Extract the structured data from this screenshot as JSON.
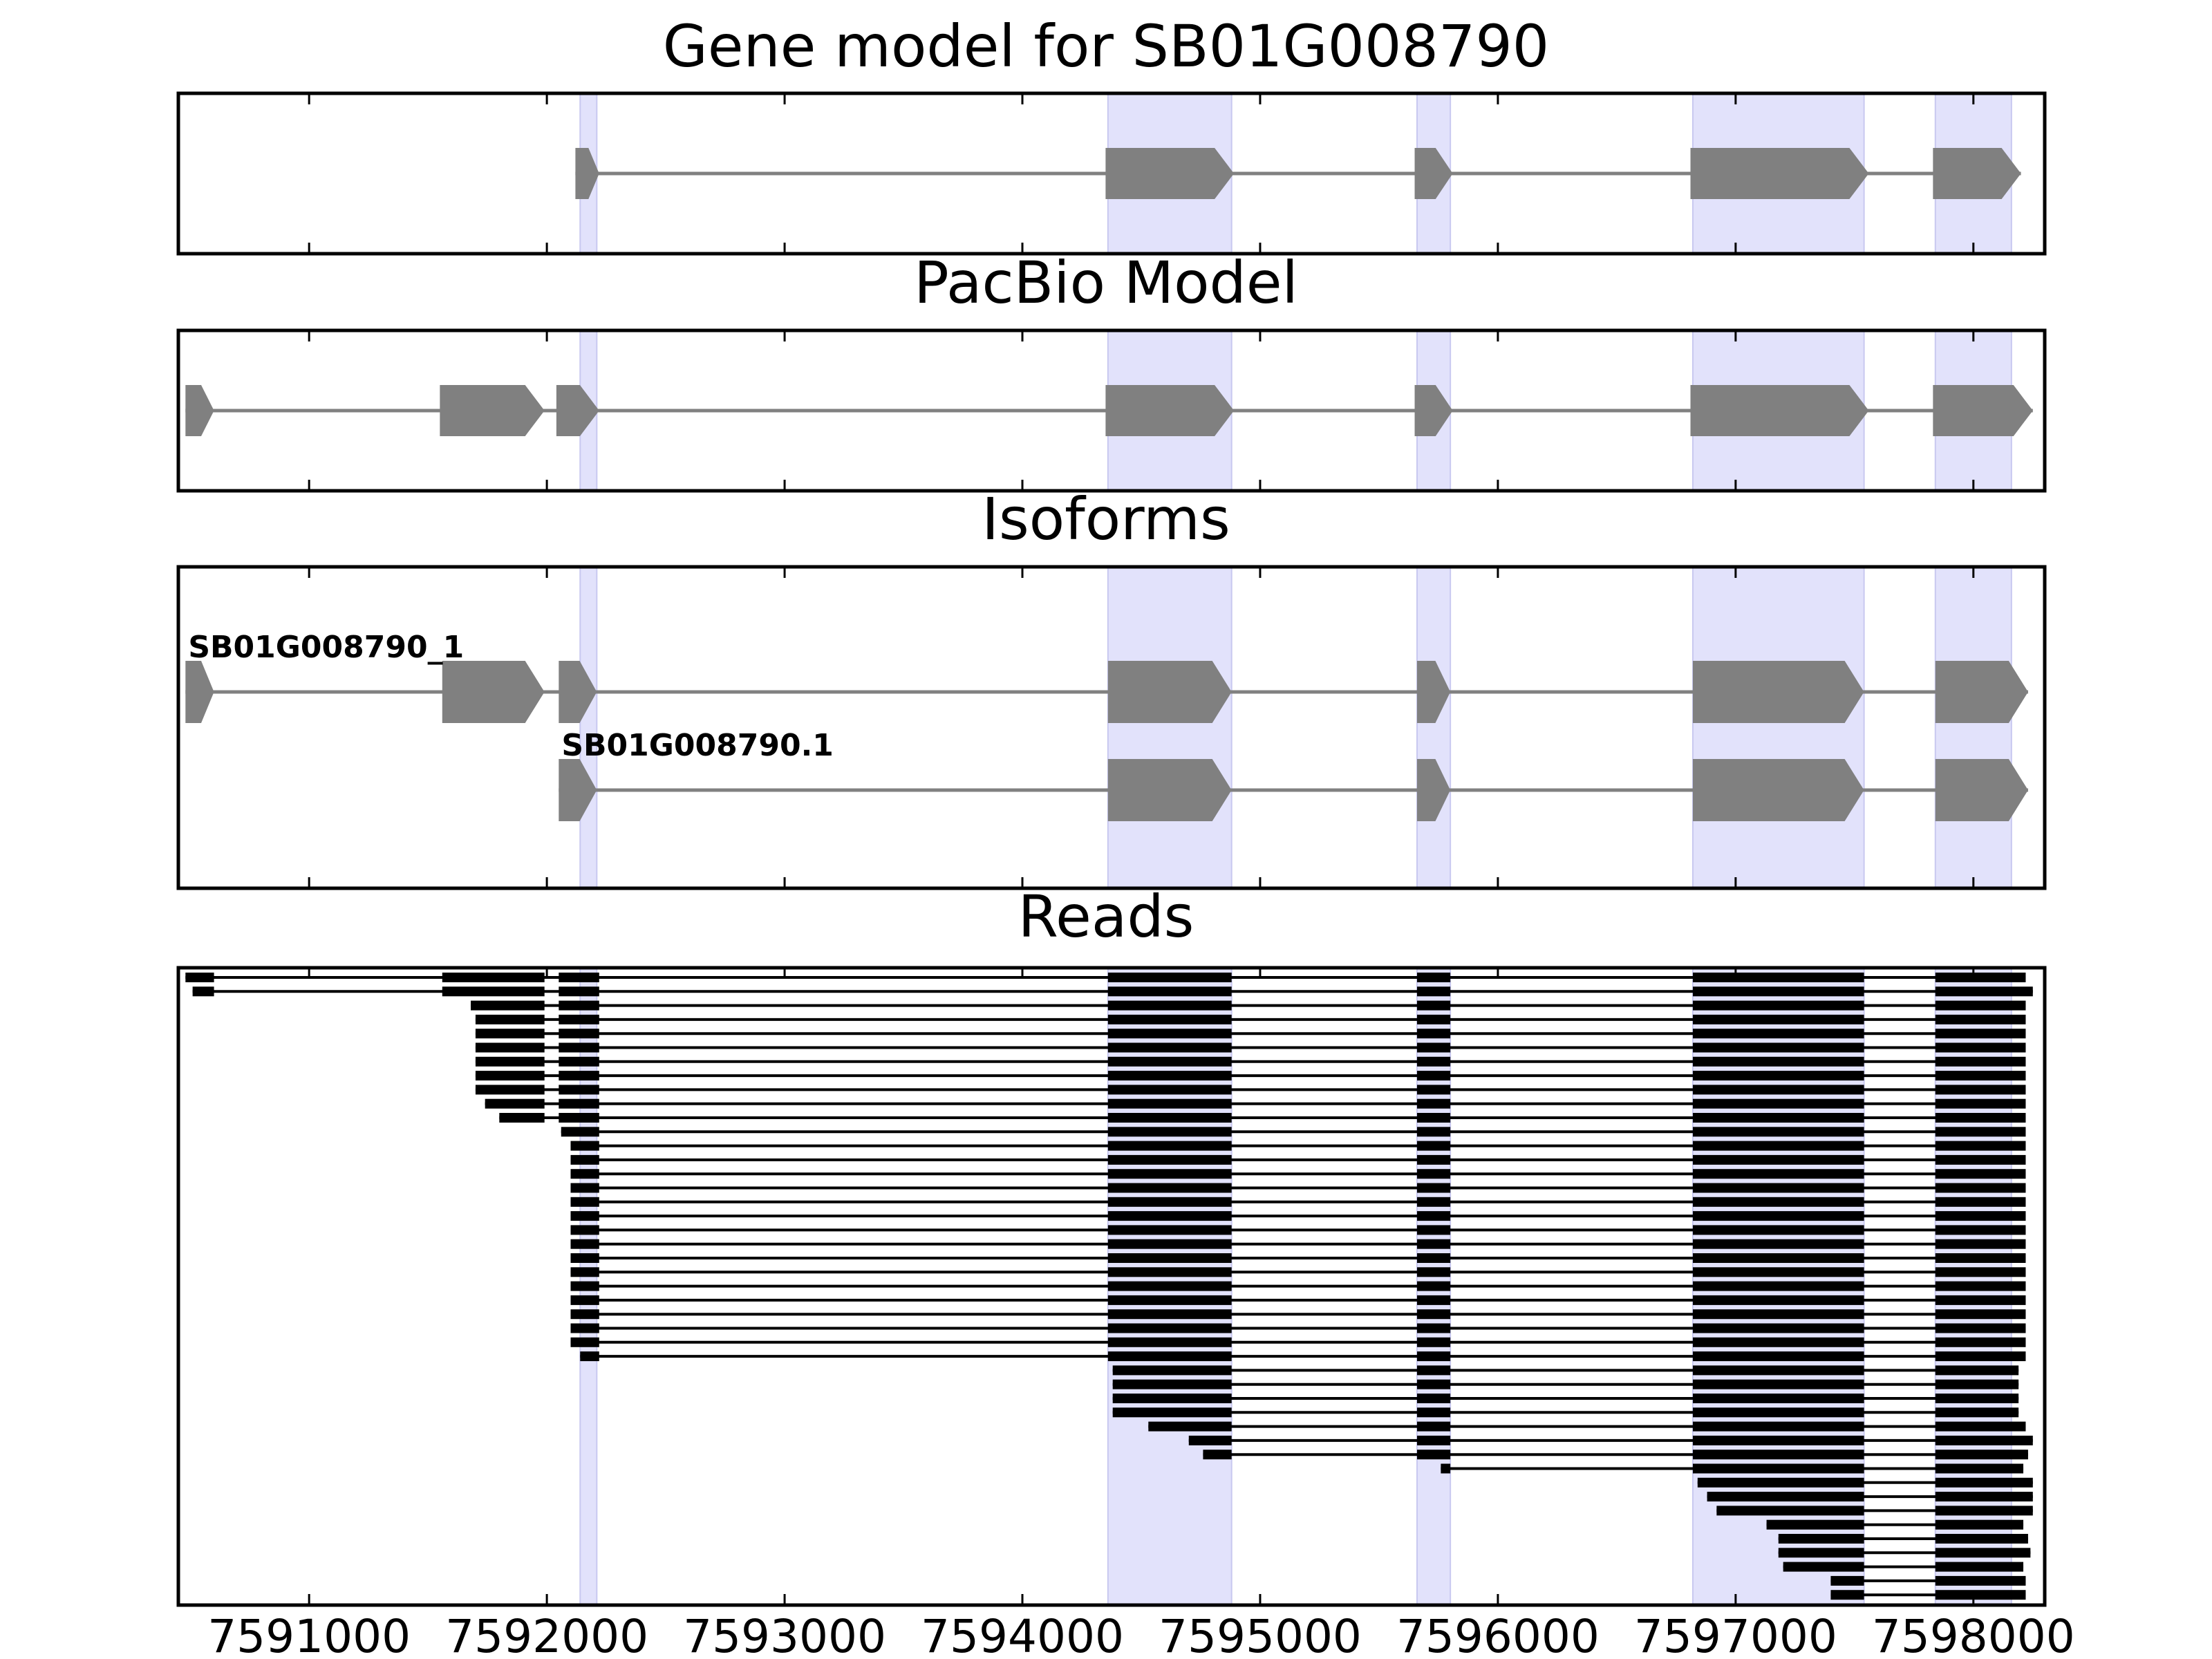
{
  "colors": {
    "exon": "#808080",
    "intron": "#808080",
    "highlight": "#e2e2fb",
    "highlight_edge": "#c8c8f0",
    "read": "#000000",
    "frame": "#000000"
  },
  "x_axis": {
    "range": [
      7590450,
      7598300
    ],
    "ticks": [
      7591000,
      7592000,
      7593000,
      7594000,
      7595000,
      7596000,
      7597000,
      7598000
    ],
    "tick_labels": [
      "7591000",
      "7592000",
      "7593000",
      "7594000",
      "7595000",
      "7596000",
      "7597000",
      "7598000"
    ]
  },
  "highlights": [
    [
      7592140,
      7592210
    ],
    [
      7594360,
      7594880
    ],
    [
      7595660,
      7595800
    ],
    [
      7596820,
      7597540
    ],
    [
      7597840,
      7598160
    ]
  ],
  "chart_data": [
    {
      "type": "gene_model",
      "title": "Gene model for SB01G008790",
      "tracks": [
        {
          "label": "",
          "exons": [
            [
              7592120,
              7592220
            ],
            [
              7594350,
              7594890
            ],
            [
              7595650,
              7595810
            ],
            [
              7596810,
              7597560
            ],
            [
              7597830,
              7598200
            ]
          ]
        }
      ]
    },
    {
      "type": "gene_model",
      "title": "PacBio Model",
      "tracks": [
        {
          "label": "",
          "exons": [
            [
              7590480,
              7590600
            ],
            [
              7591550,
              7591990
            ],
            [
              7592040,
              7592220
            ],
            [
              7594350,
              7594890
            ],
            [
              7595650,
              7595810
            ],
            [
              7596810,
              7597560
            ],
            [
              7597830,
              7598250
            ]
          ]
        }
      ]
    },
    {
      "type": "gene_model",
      "title": "Isoforms",
      "tracks": [
        {
          "label": "SB01G008790_1",
          "exons": [
            [
              7590480,
              7590600
            ],
            [
              7591560,
              7591990
            ],
            [
              7592050,
              7592210
            ],
            [
              7594360,
              7594880
            ],
            [
              7595660,
              7595800
            ],
            [
              7596820,
              7597540
            ],
            [
              7597840,
              7598230
            ]
          ]
        },
        {
          "label": "SB01G008790.1",
          "exons": [
            [
              7592050,
              7592210
            ],
            [
              7594360,
              7594880
            ],
            [
              7595660,
              7595800
            ],
            [
              7596820,
              7597540
            ],
            [
              7597840,
              7598230
            ]
          ]
        }
      ]
    },
    {
      "type": "reads",
      "title": "Reads",
      "reads": [
        [
          [
            7590480,
            7590600
          ],
          [
            7591560,
            7591990
          ],
          [
            7592050,
            7592220
          ],
          [
            7594360,
            7594880
          ],
          [
            7595660,
            7595800
          ],
          [
            7596820,
            7597540
          ],
          [
            7597840,
            7598220
          ]
        ],
        [
          [
            7590510,
            7590600
          ],
          [
            7591560,
            7591990
          ],
          [
            7592050,
            7592220
          ],
          [
            7594360,
            7594880
          ],
          [
            7595660,
            7595800
          ],
          [
            7596820,
            7597540
          ],
          [
            7597840,
            7598250
          ]
        ],
        [
          [
            7591680,
            7591990
          ],
          [
            7592050,
            7592220
          ],
          [
            7594360,
            7594880
          ],
          [
            7595660,
            7595800
          ],
          [
            7596820,
            7597540
          ],
          [
            7597840,
            7598220
          ]
        ],
        [
          [
            7591700,
            7591990
          ],
          [
            7592050,
            7592220
          ],
          [
            7594360,
            7594880
          ],
          [
            7595660,
            7595800
          ],
          [
            7596820,
            7597540
          ],
          [
            7597840,
            7598220
          ]
        ],
        [
          [
            7591700,
            7591990
          ],
          [
            7592050,
            7592220
          ],
          [
            7594360,
            7594880
          ],
          [
            7595660,
            7595800
          ],
          [
            7596820,
            7597540
          ],
          [
            7597840,
            7598220
          ]
        ],
        [
          [
            7591700,
            7591990
          ],
          [
            7592050,
            7592220
          ],
          [
            7594360,
            7594880
          ],
          [
            7595660,
            7595800
          ],
          [
            7596820,
            7597540
          ],
          [
            7597840,
            7598220
          ]
        ],
        [
          [
            7591700,
            7591990
          ],
          [
            7592050,
            7592220
          ],
          [
            7594360,
            7594880
          ],
          [
            7595660,
            7595800
          ],
          [
            7596820,
            7597540
          ],
          [
            7597840,
            7598220
          ]
        ],
        [
          [
            7591700,
            7591990
          ],
          [
            7592050,
            7592220
          ],
          [
            7594360,
            7594880
          ],
          [
            7595660,
            7595800
          ],
          [
            7596820,
            7597540
          ],
          [
            7597840,
            7598220
          ]
        ],
        [
          [
            7591700,
            7591990
          ],
          [
            7592050,
            7592220
          ],
          [
            7594360,
            7594880
          ],
          [
            7595660,
            7595800
          ],
          [
            7596820,
            7597540
          ],
          [
            7597840,
            7598220
          ]
        ],
        [
          [
            7591740,
            7591990
          ],
          [
            7592050,
            7592220
          ],
          [
            7594360,
            7594880
          ],
          [
            7595660,
            7595800
          ],
          [
            7596820,
            7597540
          ],
          [
            7597840,
            7598220
          ]
        ],
        [
          [
            7591800,
            7591990
          ],
          [
            7592050,
            7592220
          ],
          [
            7594360,
            7594880
          ],
          [
            7595660,
            7595800
          ],
          [
            7596820,
            7597540
          ],
          [
            7597840,
            7598220
          ]
        ],
        [
          [
            7592060,
            7592220
          ],
          [
            7594360,
            7594880
          ],
          [
            7595660,
            7595800
          ],
          [
            7596820,
            7597540
          ],
          [
            7597840,
            7598220
          ]
        ],
        [
          [
            7592100,
            7592220
          ],
          [
            7594360,
            7594880
          ],
          [
            7595660,
            7595800
          ],
          [
            7596820,
            7597540
          ],
          [
            7597840,
            7598220
          ]
        ],
        [
          [
            7592100,
            7592220
          ],
          [
            7594360,
            7594880
          ],
          [
            7595660,
            7595800
          ],
          [
            7596820,
            7597540
          ],
          [
            7597840,
            7598220
          ]
        ],
        [
          [
            7592100,
            7592220
          ],
          [
            7594360,
            7594880
          ],
          [
            7595660,
            7595800
          ],
          [
            7596820,
            7597540
          ],
          [
            7597840,
            7598220
          ]
        ],
        [
          [
            7592100,
            7592220
          ],
          [
            7594360,
            7594880
          ],
          [
            7595660,
            7595800
          ],
          [
            7596820,
            7597540
          ],
          [
            7597840,
            7598220
          ]
        ],
        [
          [
            7592100,
            7592220
          ],
          [
            7594360,
            7594880
          ],
          [
            7595660,
            7595800
          ],
          [
            7596820,
            7597540
          ],
          [
            7597840,
            7598220
          ]
        ],
        [
          [
            7592100,
            7592220
          ],
          [
            7594360,
            7594880
          ],
          [
            7595660,
            7595800
          ],
          [
            7596820,
            7597540
          ],
          [
            7597840,
            7598220
          ]
        ],
        [
          [
            7592100,
            7592220
          ],
          [
            7594360,
            7594880
          ],
          [
            7595660,
            7595800
          ],
          [
            7596820,
            7597540
          ],
          [
            7597840,
            7598220
          ]
        ],
        [
          [
            7592100,
            7592220
          ],
          [
            7594360,
            7594880
          ],
          [
            7595660,
            7595800
          ],
          [
            7596820,
            7597540
          ],
          [
            7597840,
            7598220
          ]
        ],
        [
          [
            7592100,
            7592220
          ],
          [
            7594360,
            7594880
          ],
          [
            7595660,
            7595800
          ],
          [
            7596820,
            7597540
          ],
          [
            7597840,
            7598220
          ]
        ],
        [
          [
            7592100,
            7592220
          ],
          [
            7594360,
            7594880
          ],
          [
            7595660,
            7595800
          ],
          [
            7596820,
            7597540
          ],
          [
            7597840,
            7598220
          ]
        ],
        [
          [
            7592100,
            7592220
          ],
          [
            7594360,
            7594880
          ],
          [
            7595660,
            7595800
          ],
          [
            7596820,
            7597540
          ],
          [
            7597840,
            7598220
          ]
        ],
        [
          [
            7592100,
            7592220
          ],
          [
            7594360,
            7594880
          ],
          [
            7595660,
            7595800
          ],
          [
            7596820,
            7597540
          ],
          [
            7597840,
            7598220
          ]
        ],
        [
          [
            7592100,
            7592220
          ],
          [
            7594360,
            7594880
          ],
          [
            7595660,
            7595800
          ],
          [
            7596820,
            7597540
          ],
          [
            7597840,
            7598220
          ]
        ],
        [
          [
            7592100,
            7592220
          ],
          [
            7594360,
            7594880
          ],
          [
            7595660,
            7595800
          ],
          [
            7596820,
            7597540
          ],
          [
            7597840,
            7598220
          ]
        ],
        [
          [
            7592100,
            7592220
          ],
          [
            7594360,
            7594880
          ],
          [
            7595660,
            7595800
          ],
          [
            7596820,
            7597540
          ],
          [
            7597840,
            7598220
          ]
        ],
        [
          [
            7592140,
            7592220
          ],
          [
            7594360,
            7594880
          ],
          [
            7595660,
            7595800
          ],
          [
            7596820,
            7597540
          ],
          [
            7597840,
            7598220
          ]
        ],
        [
          [
            7594380,
            7594880
          ],
          [
            7595660,
            7595800
          ],
          [
            7596820,
            7597540
          ],
          [
            7597840,
            7598190
          ]
        ],
        [
          [
            7594380,
            7594880
          ],
          [
            7595660,
            7595800
          ],
          [
            7596820,
            7597540
          ],
          [
            7597840,
            7598190
          ]
        ],
        [
          [
            7594380,
            7594880
          ],
          [
            7595660,
            7595800
          ],
          [
            7596820,
            7597540
          ],
          [
            7597840,
            7598190
          ]
        ],
        [
          [
            7594380,
            7594880
          ],
          [
            7595660,
            7595800
          ],
          [
            7596820,
            7597540
          ],
          [
            7597840,
            7598190
          ]
        ],
        [
          [
            7594530,
            7594880
          ],
          [
            7595660,
            7595800
          ],
          [
            7596820,
            7597540
          ],
          [
            7597840,
            7598220
          ]
        ],
        [
          [
            7594700,
            7594880
          ],
          [
            7595660,
            7595800
          ],
          [
            7596820,
            7597540
          ],
          [
            7597840,
            7598250
          ]
        ],
        [
          [
            7594760,
            7594880
          ],
          [
            7595660,
            7595800
          ],
          [
            7596820,
            7597540
          ],
          [
            7597840,
            7598230
          ]
        ],
        [
          [
            7595760,
            7595800
          ],
          [
            7596820,
            7597540
          ],
          [
            7597840,
            7598210
          ]
        ],
        [
          [
            7596840,
            7597540
          ],
          [
            7597840,
            7598250
          ]
        ],
        [
          [
            7596880,
            7597540
          ],
          [
            7597840,
            7598250
          ]
        ],
        [
          [
            7596920,
            7597540
          ],
          [
            7597840,
            7598250
          ]
        ],
        [
          [
            7597130,
            7597540
          ],
          [
            7597840,
            7598210
          ]
        ],
        [
          [
            7597180,
            7597540
          ],
          [
            7597840,
            7598230
          ]
        ],
        [
          [
            7597180,
            7597540
          ],
          [
            7597840,
            7598240
          ]
        ],
        [
          [
            7597200,
            7597540
          ],
          [
            7597840,
            7598210
          ]
        ],
        [
          [
            7597400,
            7597540
          ],
          [
            7597840,
            7598220
          ]
        ],
        [
          [
            7597400,
            7597540
          ],
          [
            7597840,
            7598220
          ]
        ]
      ]
    }
  ]
}
